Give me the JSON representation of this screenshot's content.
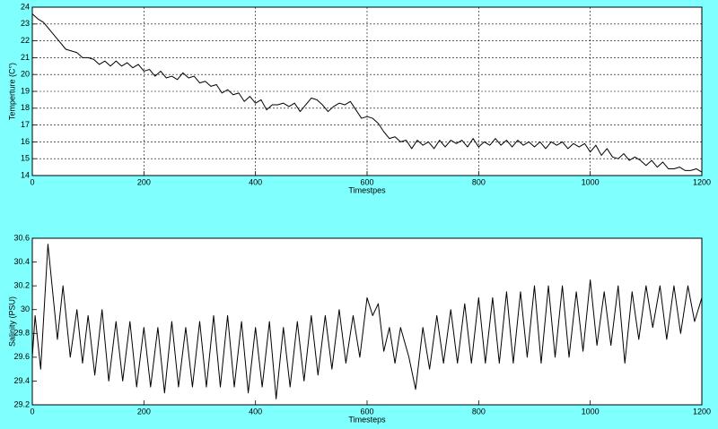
{
  "chart_data": [
    {
      "type": "line",
      "xlabel": "Timestpes",
      "ylabel": "Temperture (C°)",
      "color": "#000000",
      "grid": true,
      "xlim": [
        0,
        1200
      ],
      "xticks": [
        0,
        200,
        400,
        600,
        800,
        1000,
        1200
      ],
      "ylim": [
        14,
        24
      ],
      "yticks": [
        14,
        15,
        16,
        17,
        18,
        19,
        20,
        21,
        22,
        23,
        24
      ],
      "x": [
        0,
        10,
        20,
        30,
        40,
        50,
        60,
        70,
        80,
        90,
        100,
        110,
        120,
        130,
        140,
        150,
        160,
        170,
        180,
        190,
        200,
        210,
        220,
        230,
        240,
        250,
        260,
        270,
        280,
        290,
        300,
        310,
        320,
        330,
        340,
        350,
        360,
        370,
        380,
        390,
        400,
        410,
        420,
        430,
        440,
        450,
        460,
        470,
        480,
        490,
        500,
        510,
        520,
        530,
        540,
        550,
        560,
        570,
        580,
        590,
        600,
        610,
        620,
        630,
        640,
        650,
        660,
        670,
        680,
        690,
        700,
        710,
        720,
        730,
        740,
        750,
        760,
        770,
        780,
        790,
        800,
        810,
        820,
        830,
        840,
        850,
        860,
        870,
        880,
        890,
        900,
        910,
        920,
        930,
        940,
        950,
        960,
        970,
        980,
        990,
        1000,
        1010,
        1020,
        1030,
        1040,
        1050,
        1060,
        1070,
        1080,
        1090,
        1100,
        1110,
        1120,
        1130,
        1140,
        1150,
        1160,
        1170,
        1180,
        1190,
        1200
      ],
      "values": [
        23.6,
        23.3,
        23.1,
        22.7,
        22.3,
        21.9,
        21.5,
        21.4,
        21.3,
        21.0,
        21.0,
        20.9,
        20.6,
        20.8,
        20.5,
        20.8,
        20.5,
        20.7,
        20.4,
        20.6,
        20.2,
        20.3,
        19.9,
        20.2,
        19.8,
        19.9,
        19.7,
        20.1,
        19.8,
        19.9,
        19.5,
        19.6,
        19.3,
        19.4,
        18.9,
        19.1,
        18.8,
        18.9,
        18.4,
        18.7,
        18.3,
        18.5,
        17.9,
        18.2,
        18.2,
        18.3,
        18.1,
        18.3,
        17.8,
        18.2,
        18.6,
        18.5,
        18.2,
        17.8,
        18.1,
        18.3,
        18.2,
        18.4,
        17.9,
        17.4,
        17.5,
        17.4,
        17.1,
        16.6,
        16.2,
        16.3,
        16.0,
        16.1,
        15.6,
        16.1,
        15.8,
        16.0,
        15.6,
        16.1,
        15.7,
        16.1,
        15.9,
        16.1,
        15.7,
        16.2,
        15.7,
        16.0,
        15.8,
        16.2,
        15.8,
        16.1,
        15.7,
        16.1,
        15.8,
        16.0,
        15.7,
        16.0,
        15.6,
        16.0,
        15.8,
        16.0,
        15.6,
        15.9,
        15.7,
        15.9,
        15.4,
        15.8,
        15.2,
        15.6,
        15.1,
        15.0,
        15.3,
        14.9,
        15.1,
        14.9,
        14.6,
        14.9,
        14.5,
        14.8,
        14.4,
        14.4,
        14.5,
        14.3,
        14.3,
        14.4,
        14.2
      ]
    },
    {
      "type": "line",
      "xlabel": "Timesteps",
      "ylabel": "Salinity (PSU)",
      "color": "#000000",
      "grid": false,
      "xlim": [
        0,
        1200
      ],
      "xticks": [
        0,
        200,
        400,
        600,
        800,
        1000,
        1200
      ],
      "ylim": [
        29.2,
        30.6
      ],
      "yticks": [
        29.2,
        29.4,
        29.6,
        29.8,
        30,
        30.2,
        30.4,
        30.6
      ],
      "x": [
        0,
        5,
        15,
        28,
        45,
        55,
        68,
        80,
        90,
        100,
        112,
        125,
        137,
        150,
        162,
        175,
        187,
        200,
        212,
        225,
        237,
        250,
        262,
        275,
        287,
        300,
        312,
        325,
        337,
        350,
        362,
        375,
        387,
        400,
        412,
        425,
        437,
        450,
        462,
        475,
        487,
        500,
        512,
        525,
        537,
        550,
        562,
        575,
        587,
        600,
        610,
        620,
        630,
        640,
        650,
        660,
        675,
        687,
        700,
        712,
        725,
        737,
        750,
        762,
        775,
        787,
        800,
        812,
        825,
        837,
        850,
        862,
        875,
        887,
        900,
        912,
        925,
        937,
        950,
        962,
        975,
        987,
        1000,
        1012,
        1025,
        1037,
        1050,
        1062,
        1075,
        1087,
        1100,
        1112,
        1125,
        1137,
        1150,
        1162,
        1175,
        1187,
        1200
      ],
      "values": [
        29.6,
        29.95,
        29.5,
        30.55,
        29.75,
        30.2,
        29.6,
        30.0,
        29.55,
        29.95,
        29.45,
        30.0,
        29.4,
        29.9,
        29.4,
        29.9,
        29.35,
        29.85,
        29.35,
        29.85,
        29.3,
        29.9,
        29.35,
        29.85,
        29.35,
        29.9,
        29.35,
        29.95,
        29.35,
        29.95,
        29.35,
        29.9,
        29.3,
        29.85,
        29.35,
        29.9,
        29.25,
        29.85,
        29.35,
        29.9,
        29.4,
        29.95,
        29.45,
        29.95,
        29.5,
        30.0,
        29.55,
        29.95,
        29.6,
        30.1,
        29.95,
        30.05,
        29.65,
        29.85,
        29.55,
        29.85,
        29.6,
        29.33,
        29.85,
        29.5,
        29.95,
        29.55,
        30.0,
        29.55,
        30.05,
        29.55,
        30.1,
        29.55,
        30.1,
        29.55,
        30.15,
        29.55,
        30.15,
        29.6,
        30.2,
        29.55,
        30.2,
        29.6,
        30.2,
        29.6,
        30.15,
        29.65,
        30.25,
        29.7,
        30.15,
        29.7,
        30.2,
        29.55,
        30.15,
        29.75,
        30.2,
        29.85,
        30.2,
        29.75,
        30.2,
        29.8,
        30.2,
        29.9,
        30.1
      ]
    }
  ]
}
